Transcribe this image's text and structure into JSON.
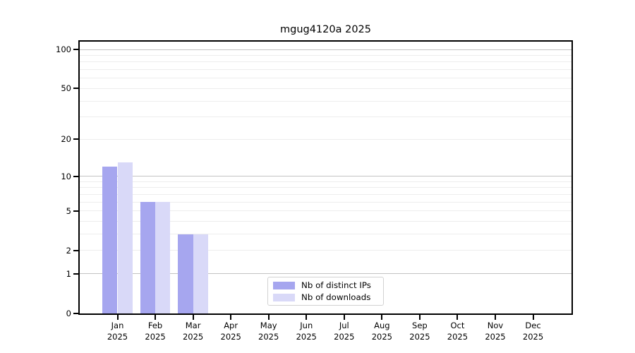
{
  "chart_data": {
    "type": "bar",
    "title": "mgug4120a 2025",
    "year_label": "2025",
    "categories": [
      "Jan",
      "Feb",
      "Mar",
      "Apr",
      "May",
      "Jun",
      "Jul",
      "Aug",
      "Sep",
      "Oct",
      "Nov",
      "Dec"
    ],
    "series": [
      {
        "name": "Nb of distinct IPs",
        "color": "#a6a6ef",
        "values": [
          12,
          6,
          3,
          0,
          0,
          0,
          0,
          0,
          0,
          0,
          0,
          0
        ]
      },
      {
        "name": "Nb of downloads",
        "color": "#d9d9f8",
        "values": [
          13,
          6,
          3,
          0,
          0,
          0,
          0,
          0,
          0,
          0,
          0,
          0
        ]
      }
    ],
    "xlabel": "",
    "ylabel": "",
    "yscale": "log1p",
    "ylim": [
      0,
      100
    ],
    "ytick_labels": [
      "100",
      "50",
      "20",
      "10",
      "5",
      "2",
      "1",
      "0"
    ],
    "ytick_values": [
      100,
      50,
      20,
      10,
      5,
      2,
      1,
      0
    ],
    "gridlines": {
      "major": [
        1,
        10,
        100
      ],
      "minor": [
        2,
        3,
        4,
        5,
        6,
        7,
        8,
        9,
        20,
        30,
        40,
        50,
        60,
        70,
        80,
        90
      ]
    },
    "grid": true,
    "legend_position": "lower center"
  },
  "colors": {
    "background": "#ffffff",
    "spine": "#000000",
    "text": "#000000",
    "major_grid": "#c3c3c3",
    "minor_grid": "#ededed",
    "legend_border": "#d2d2d2"
  }
}
